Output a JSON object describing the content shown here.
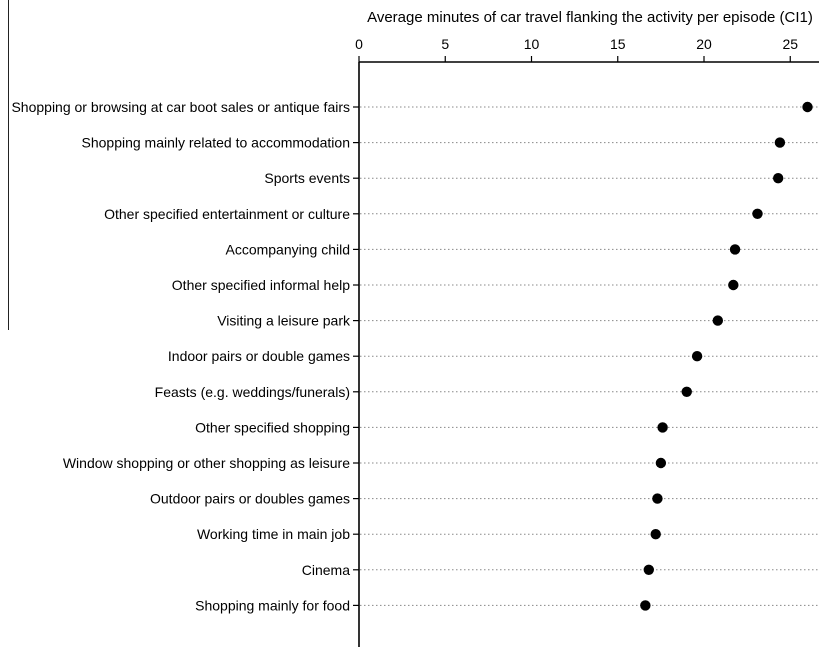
{
  "chart_data": {
    "type": "scatter",
    "title": "",
    "xlabel": "Average minutes of car travel flanking the activity per episode (CI1)",
    "ylabel": "",
    "xlim": [
      0,
      26.5
    ],
    "xticks": [
      0,
      5,
      10,
      15,
      20,
      25
    ],
    "grid": "dotted horizontal guide lines per category",
    "marker_color": "#000000",
    "categories": [
      "Shopping or browsing at car boot sales or antique fairs",
      "Shopping mainly related to accommodation",
      "Sports events",
      "Other specified entertainment or culture",
      "Accompanying child",
      "Other specified informal help",
      "Visiting a leisure park",
      "Indoor pairs or double games",
      "Feasts (e.g. weddings/funerals)",
      "Other specified shopping",
      "Window shopping or other shopping as leisure",
      "Outdoor pairs or doubles games",
      "Working time in main job",
      "Cinema",
      "Shopping mainly for food"
    ],
    "values": [
      26.0,
      24.4,
      24.3,
      23.1,
      21.8,
      21.7,
      20.8,
      19.6,
      19.0,
      17.6,
      17.5,
      17.3,
      17.2,
      16.8,
      16.6
    ]
  }
}
